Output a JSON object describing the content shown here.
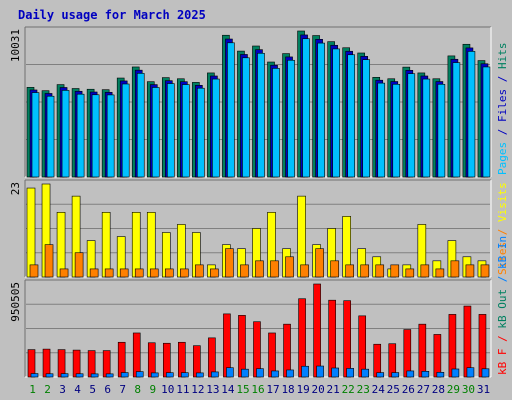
{
  "title": "Daily usage for March 2025",
  "colors": {
    "background": "#c0c0c0",
    "title": "#0000c0",
    "pages": "#008060",
    "files": "#0000c0",
    "hits": "#00c0ff",
    "visits": "#ffff00",
    "sites": "#ff8000",
    "kb_in": "#0080ff",
    "kb_out": "#ff0000",
    "kb_f": "#ff0000",
    "day_weekday": "#000080",
    "day_weekend": "#008000"
  },
  "panels": {
    "top": {
      "max_label": "10031",
      "legend": [
        {
          "text": "Pages",
          "color_key": "hits"
        },
        {
          "text": " / ",
          "color_key": "files"
        },
        {
          "text": "Files",
          "color_key": "files"
        },
        {
          "text": " / ",
          "color_key": "files"
        },
        {
          "text": "Hits",
          "color_key": "pages"
        }
      ]
    },
    "middle": {
      "max_label": "23",
      "legend": [
        {
          "text": "Sites",
          "color_key": "sites"
        },
        {
          "text": " / ",
          "color_key": "sites"
        },
        {
          "text": "Visits",
          "color_key": "visits"
        }
      ]
    },
    "bottom": {
      "max_label": "950505",
      "legend": [
        {
          "text": "kB F",
          "color_key": "kb_f"
        },
        {
          "text": " / ",
          "color_key": "kb_out"
        },
        {
          "text": "kB Out",
          "color_key": "pages"
        },
        {
          "text": " / ",
          "color_key": "kb_in"
        },
        {
          "text": "kB In",
          "color_key": "kb_in"
        }
      ]
    }
  },
  "chart_data": {
    "type": "bar",
    "title": "Daily usage for March 2025",
    "categories": [
      "1",
      "2",
      "3",
      "4",
      "5",
      "6",
      "7",
      "8",
      "9",
      "10",
      "11",
      "12",
      "13",
      "14",
      "15",
      "16",
      "17",
      "18",
      "19",
      "20",
      "21",
      "22",
      "23",
      "24",
      "25",
      "26",
      "27",
      "28",
      "29",
      "30",
      "31"
    ],
    "weekend_days": [
      "1",
      "2",
      "8",
      "9",
      "15",
      "16",
      "22",
      "23",
      "29",
      "30"
    ],
    "hits": [
      6160,
      5930,
      6350,
      6080,
      6030,
      6000,
      6800,
      7560,
      6550,
      6830,
      6750,
      6500,
      7150,
      9740,
      8650,
      9000,
      7900,
      8480,
      10031,
      9720,
      9300,
      8880,
      8520,
      6850,
      6750,
      7550,
      7150,
      6750,
      8320,
      9120,
      8000
    ],
    "files": [
      5980,
      5740,
      6150,
      5890,
      5840,
      5820,
      6600,
      7340,
      6350,
      6620,
      6550,
      6300,
      6940,
      9480,
      8420,
      8750,
      7680,
      8250,
      9760,
      9460,
      9050,
      8640,
      8290,
      6650,
      6560,
      7330,
      6940,
      6560,
      8090,
      8870,
      7780
    ],
    "pages": [
      5800,
      5550,
      5950,
      5690,
      5650,
      5640,
      6390,
      7120,
      6150,
      6420,
      6350,
      6100,
      6730,
      9220,
      8190,
      8500,
      7460,
      8020,
      9500,
      9200,
      8800,
      8400,
      8060,
      6450,
      6370,
      7100,
      6730,
      6370,
      7860,
      8630,
      7560
    ],
    "visits": [
      22,
      23,
      16,
      20,
      9,
      16,
      10,
      16,
      16,
      11,
      13,
      11,
      3,
      8,
      7,
      12,
      16,
      7,
      20,
      8,
      12,
      15,
      7,
      5,
      2,
      3,
      13,
      4,
      9,
      5,
      4
    ],
    "sites": [
      3,
      8,
      2,
      6,
      2,
      2,
      2,
      2,
      2,
      2,
      2,
      3,
      2,
      7,
      3,
      4,
      4,
      5,
      3,
      7,
      4,
      3,
      3,
      3,
      3,
      2,
      3,
      2,
      4,
      3,
      3
    ],
    "kb_out": [
      280000,
      285000,
      280000,
      275000,
      270000,
      270000,
      355000,
      450000,
      350000,
      345000,
      355000,
      320000,
      400000,
      645000,
      630000,
      565000,
      450000,
      540000,
      800000,
      950505,
      785000,
      780000,
      625000,
      335000,
      340000,
      485000,
      540000,
      435000,
      640000,
      725000,
      640000
    ],
    "kb_in": [
      35000,
      33000,
      34000,
      33000,
      32000,
      32000,
      45000,
      55000,
      42000,
      44000,
      44000,
      42000,
      52000,
      95000,
      80000,
      85000,
      62000,
      72000,
      110000,
      112000,
      92000,
      88000,
      80000,
      45000,
      45000,
      62000,
      58000,
      48000,
      82000,
      95000,
      84000
    ],
    "ylim_top": [
      0,
      10031
    ],
    "ylim_middle": [
      0,
      23
    ],
    "ylim_bottom": [
      0,
      950505
    ]
  }
}
